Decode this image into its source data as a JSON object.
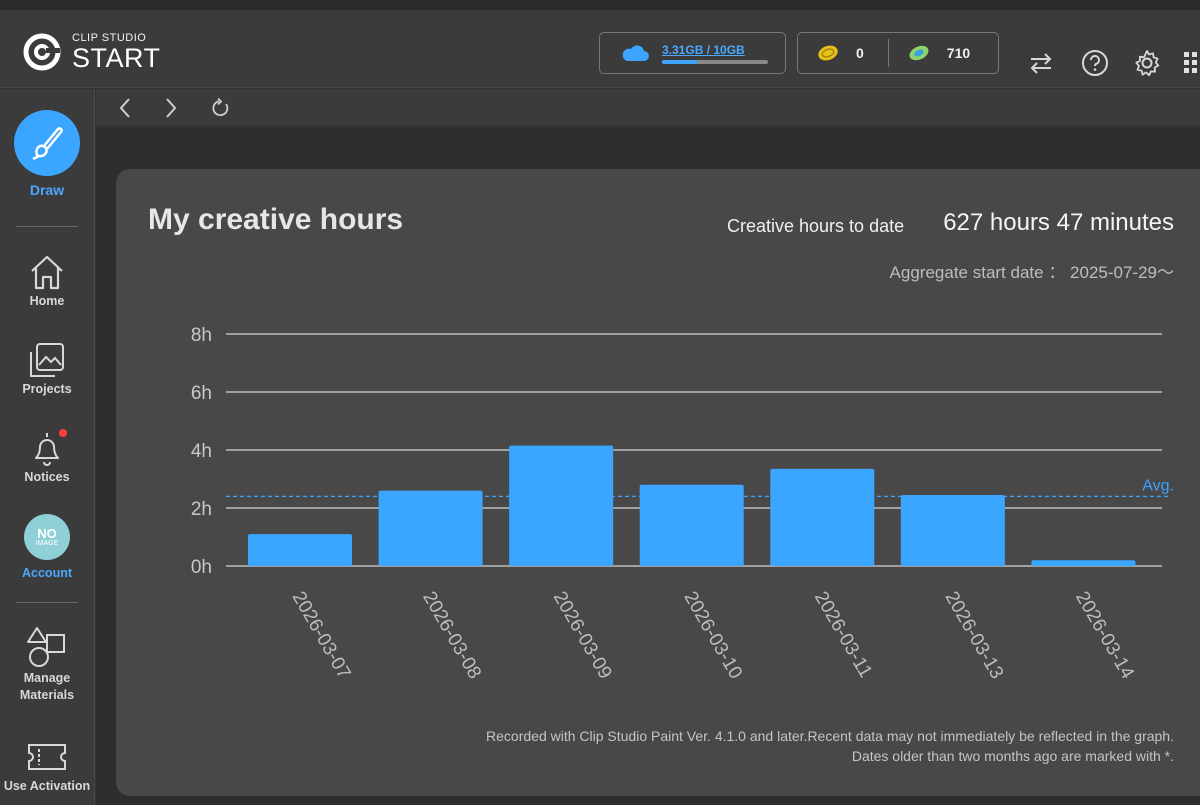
{
  "app": {
    "brand_small": "CLIP STUDIO",
    "brand_big": "START"
  },
  "header": {
    "storage_text": "3.31GB / 10GB",
    "storage_fraction": 0.331,
    "gold_coins": "0",
    "points": "710"
  },
  "sidebar": {
    "items": [
      {
        "label": "Draw"
      },
      {
        "label": "Home"
      },
      {
        "label": "Projects"
      },
      {
        "label": "Notices"
      },
      {
        "label": "Account"
      },
      {
        "label_line1": "Manage",
        "label_line2": "Materials"
      },
      {
        "label": "Use Activation"
      }
    ],
    "avatar_line1": "NO",
    "avatar_line2": "IMAGE"
  },
  "card": {
    "title": "My creative hours",
    "total_label": "Creative hours to date",
    "total_value": "627 hours 47 minutes",
    "start_date": "Aggregate start date ： 2025-07-29〜",
    "footnote_line1": "Recorded with Clip Studio Paint Ver. 4.1.0 and later.Recent data may not immediately be reflected in the graph.",
    "footnote_line2": "Dates older than two months ago are marked with *."
  },
  "colors": {
    "accent": "#3da5ff",
    "bar": "#3aa6ff",
    "grid": "#bdbdbd"
  },
  "chart_data": {
    "type": "bar",
    "categories": [
      "2026-03-07",
      "2026-03-08",
      "2026-03-09",
      "2026-03-10",
      "2026-03-11",
      "2026-03-13",
      "2026-03-14"
    ],
    "values": [
      1.1,
      2.6,
      4.15,
      2.8,
      3.35,
      2.45,
      0.2
    ],
    "y_ticks": [
      "0h",
      "2h",
      "4h",
      "6h",
      "8h"
    ],
    "ylim": [
      0,
      8
    ],
    "avg": 2.4,
    "avg_label": "Avg.",
    "grid": true
  }
}
